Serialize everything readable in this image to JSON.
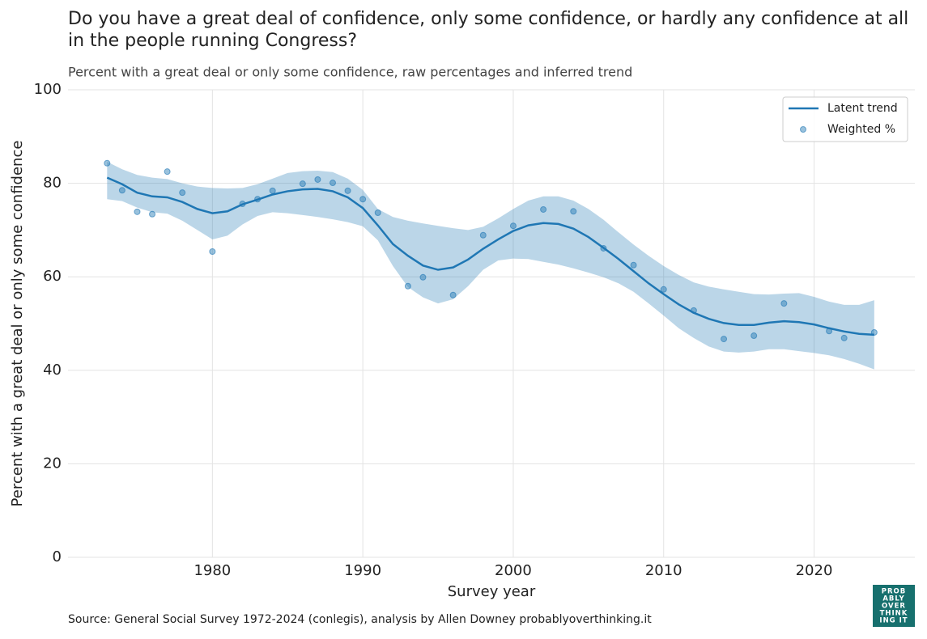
{
  "chart_data": {
    "type": "line",
    "title": [
      "Do you have a great deal of confidence, only some confidence, or hardly any confidence at all",
      "in the people running Congress?"
    ],
    "subtitle": "Percent with a great deal or only some confidence, raw percentages and inferred trend",
    "x_label": "Survey year",
    "y_label": "Percent with a great deal or only some confidence",
    "source": "Source: General Social Survey 1972-2024 (conlegis), analysis by Allen Downey probablyoverthinking.it",
    "logo": [
      "PROB",
      "ABLY",
      "OVER",
      "THINK",
      "ING IT"
    ],
    "xlim": [
      1970.4,
      2026.7
    ],
    "xticks": [
      1980,
      1990,
      2000,
      2010,
      2020
    ],
    "ylim": [
      0,
      100
    ],
    "yticks": [
      0,
      20,
      40,
      60,
      80,
      100
    ],
    "grid": true,
    "legend": "upper right",
    "series": [
      {
        "name": "Latent trend",
        "color": "#1f77b4",
        "x": [
          1973,
          1974,
          1975,
          1976,
          1977,
          1978,
          1979,
          1980,
          1981,
          1982,
          1983,
          1984,
          1985,
          1986,
          1987,
          1988,
          1989,
          1990,
          1991,
          1992,
          1993,
          1994,
          1995,
          1996,
          1997,
          1998,
          1999,
          2000,
          2001,
          2002,
          2003,
          2004,
          2005,
          2006,
          2007,
          2008,
          2009,
          2010,
          2011,
          2012,
          2013,
          2014,
          2015,
          2016,
          2017,
          2018,
          2019,
          2020,
          2021,
          2022,
          2023,
          2024
        ],
        "values": [
          81.2,
          79.8,
          78.0,
          77.2,
          77.0,
          76.0,
          74.5,
          73.6,
          74.0,
          75.5,
          76.5,
          77.6,
          78.3,
          78.7,
          78.8,
          78.3,
          77.0,
          74.7,
          71.0,
          67.0,
          64.5,
          62.4,
          61.5,
          62.0,
          63.7,
          66.0,
          68.0,
          69.8,
          71.0,
          71.5,
          71.3,
          70.3,
          68.5,
          66.2,
          63.8,
          61.2,
          58.6,
          56.3,
          54.1,
          52.3,
          51.0,
          50.1,
          49.7,
          49.7,
          50.2,
          50.5,
          50.3,
          49.8,
          49.0,
          48.3,
          47.8,
          47.6
        ],
        "lower": [
          76.6,
          76.2,
          74.8,
          73.8,
          73.5,
          72.0,
          70.0,
          68.0,
          68.8,
          71.2,
          73.0,
          73.8,
          73.6,
          73.2,
          72.8,
          72.3,
          71.7,
          70.8,
          67.8,
          62.3,
          57.8,
          55.6,
          54.3,
          55.2,
          58.0,
          61.5,
          63.5,
          63.9,
          63.8,
          63.2,
          62.6,
          61.8,
          60.9,
          59.9,
          58.6,
          56.8,
          54.3,
          51.7,
          49.0,
          46.9,
          45.1,
          44.0,
          43.8,
          44.0,
          44.5,
          44.5,
          44.1,
          43.7,
          43.2,
          42.4,
          41.4,
          40.2
        ],
        "upper": [
          84.6,
          83.0,
          81.8,
          81.2,
          80.9,
          80.0,
          79.3,
          79.0,
          78.9,
          79.0,
          79.8,
          81.0,
          82.2,
          82.6,
          82.7,
          82.4,
          81.0,
          78.6,
          74.5,
          72.8,
          72.0,
          71.4,
          70.9,
          70.4,
          70.0,
          70.7,
          72.5,
          74.5,
          76.3,
          77.2,
          77.2,
          76.3,
          74.5,
          72.2,
          69.5,
          66.9,
          64.5,
          62.3,
          60.4,
          58.8,
          57.9,
          57.3,
          56.8,
          56.3,
          56.2,
          56.4,
          56.5,
          55.7,
          54.7,
          54.0,
          54.0,
          55.0
        ]
      },
      {
        "name": "Weighted %",
        "color": "#1f77b4",
        "marker": "circle",
        "x": [
          1973,
          1974,
          1975,
          1976,
          1977,
          1978,
          1980,
          1982,
          1983,
          1984,
          1986,
          1987,
          1988,
          1989,
          1990,
          1991,
          1993,
          1994,
          1996,
          1998,
          2000,
          2002,
          2004,
          2006,
          2008,
          2010,
          2012,
          2014,
          2016,
          2018,
          2021,
          2022,
          2024
        ],
        "values": [
          84.3,
          78.5,
          73.9,
          73.4,
          82.5,
          78.0,
          65.4,
          75.6,
          76.6,
          78.4,
          79.9,
          80.8,
          80.1,
          78.4,
          76.6,
          73.7,
          58.0,
          59.9,
          56.1,
          68.9,
          70.9,
          74.4,
          74.0,
          66.1,
          62.5,
          57.3,
          52.8,
          46.7,
          47.4,
          54.3,
          48.4,
          46.9,
          48.1
        ]
      }
    ]
  }
}
